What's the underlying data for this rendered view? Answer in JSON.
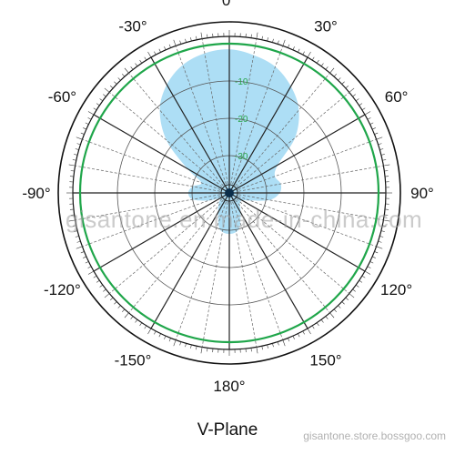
{
  "chart_data": {
    "type": "polar",
    "title": "V-Plane",
    "angle_labels": [
      {
        "deg": 0,
        "text": "0°"
      },
      {
        "deg": 30,
        "text": "30°"
      },
      {
        "deg": 60,
        "text": "60°"
      },
      {
        "deg": 90,
        "text": "90°"
      },
      {
        "deg": 120,
        "text": "120°"
      },
      {
        "deg": 150,
        "text": "150°"
      },
      {
        "deg": 180,
        "text": "180°"
      },
      {
        "deg": -150,
        "text": "-150°"
      },
      {
        "deg": -120,
        "text": "-120°"
      },
      {
        "deg": -90,
        "text": "-90°"
      },
      {
        "deg": -60,
        "text": "-60°"
      },
      {
        "deg": -30,
        "text": "-30°"
      }
    ],
    "ring_labels": [
      {
        "value": -10,
        "text": "-10"
      },
      {
        "value": -20,
        "text": "-20"
      },
      {
        "value": -30,
        "text": "-30"
      }
    ],
    "r_range": [
      -40,
      0
    ],
    "reference_level": 0,
    "series": [
      {
        "fill_color": "#a9dcf4",
        "points": [
          {
            "angle": 0,
            "value": -1.5
          },
          {
            "angle": 10,
            "value": -2.5
          },
          {
            "angle": 20,
            "value": -4.0
          },
          {
            "angle": 30,
            "value": -7.0
          },
          {
            "angle": 40,
            "value": -11.0
          },
          {
            "angle": 50,
            "value": -17.0
          },
          {
            "angle": 60,
            "value": -25.0
          },
          {
            "angle": 70,
            "value": -27.0
          },
          {
            "angle": 80,
            "value": -26.0
          },
          {
            "angle": 90,
            "value": -26.5
          },
          {
            "angle": 100,
            "value": -29.0
          },
          {
            "angle": 110,
            "value": -34.0
          },
          {
            "angle": 120,
            "value": -36.0
          },
          {
            "angle": 135,
            "value": -36.0
          },
          {
            "angle": 150,
            "value": -34.0
          },
          {
            "angle": 165,
            "value": -30.0
          },
          {
            "angle": 180,
            "value": -29.0
          },
          {
            "angle": -165,
            "value": -30.0
          },
          {
            "angle": -150,
            "value": -34.0
          },
          {
            "angle": -135,
            "value": -36.0
          },
          {
            "angle": -120,
            "value": -37.0
          },
          {
            "angle": -110,
            "value": -34.0
          },
          {
            "angle": -100,
            "value": -30.0
          },
          {
            "angle": -90,
            "value": -29.0
          },
          {
            "angle": -80,
            "value": -30.0
          },
          {
            "angle": -70,
            "value": -32.0
          },
          {
            "angle": -60,
            "value": -27.0
          },
          {
            "angle": -50,
            "value": -18.0
          },
          {
            "angle": -40,
            "value": -11.0
          },
          {
            "angle": -30,
            "value": -6.5
          },
          {
            "angle": -20,
            "value": -3.5
          },
          {
            "angle": -10,
            "value": -2.0
          }
        ]
      }
    ],
    "grid": true
  },
  "colors": {
    "outline": "#111111",
    "reference_ring": "#1fa64a",
    "grid": "#555555",
    "fill": "#a9dcf4"
  },
  "watermark": "gisantone.en.made-in-china.com",
  "footer_watermark": "gisantone.store.bossgoo.com"
}
